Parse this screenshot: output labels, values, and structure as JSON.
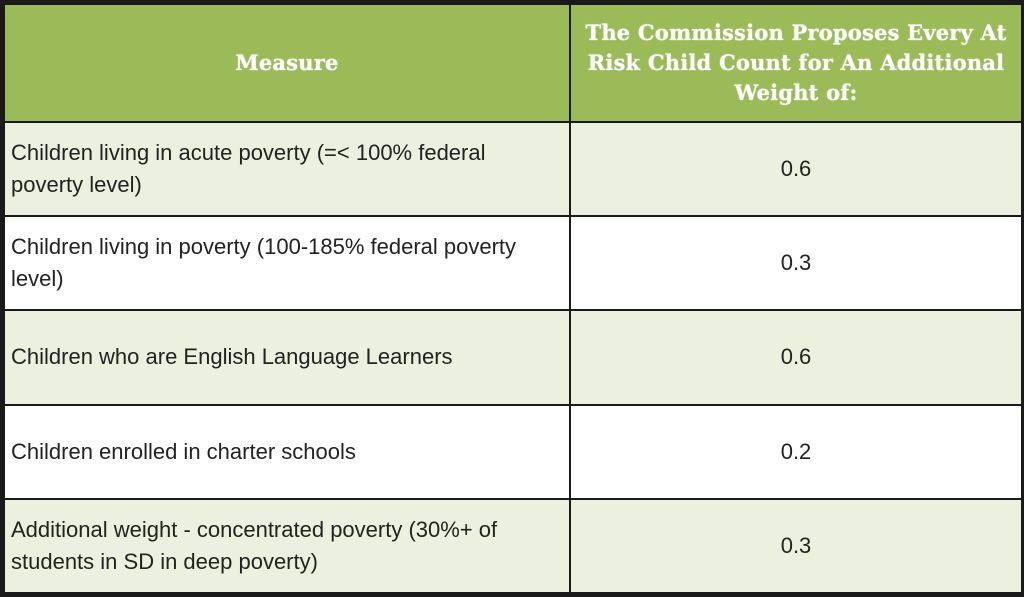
{
  "table": {
    "headers": {
      "measure": "Measure",
      "weight": "The Commission Proposes Every At Risk Child Count for An Additional Weight of:"
    },
    "rows": [
      {
        "measure": "Children living in acute poverty (=< 100% federal poverty level)",
        "weight": "0.6"
      },
      {
        "measure": "Children living in poverty (100-185% federal poverty level)",
        "weight": "0.3"
      },
      {
        "measure": "Children who are English Language Learners",
        "weight": "0.6"
      },
      {
        "measure": "Children enrolled in charter schools",
        "weight": "0.2"
      },
      {
        "measure": "Additional weight - concentrated poverty (30%+ of students in SD in deep poverty)",
        "weight": "0.3"
      }
    ]
  },
  "colors": {
    "header_bg": "#9bbb59",
    "row_alt_bg": "#ebf1de",
    "row_bg": "#ffffff",
    "border": "#1a1a1a"
  }
}
